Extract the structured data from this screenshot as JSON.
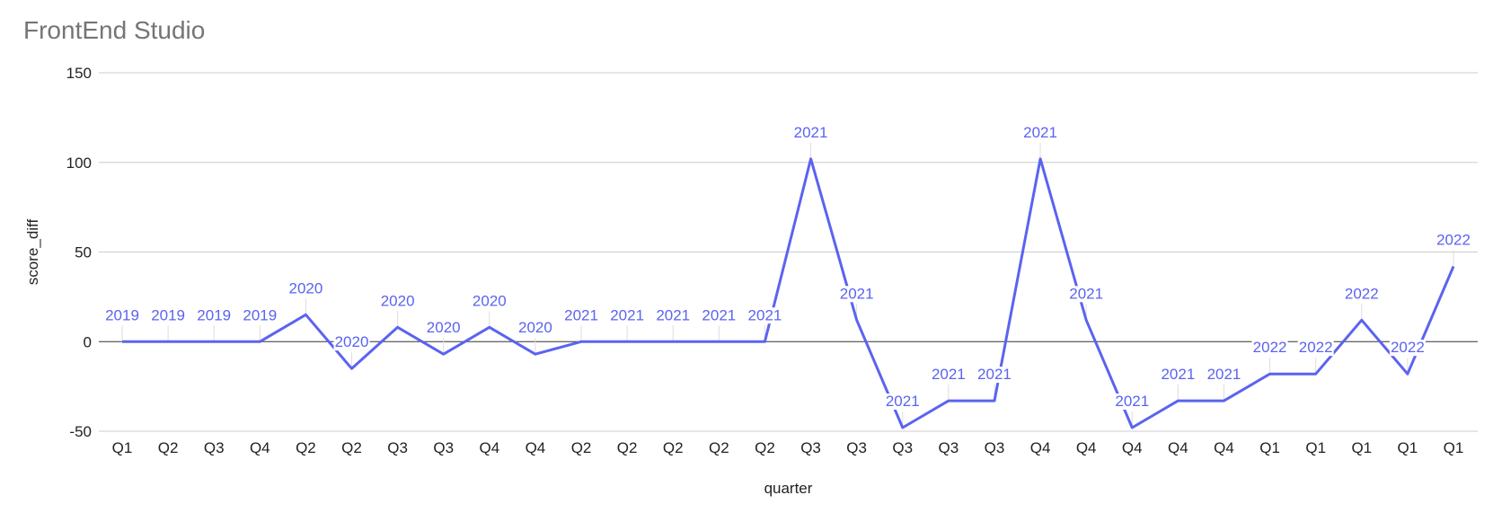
{
  "chart_data": {
    "type": "line",
    "title": "FrontEnd Studio",
    "xlabel": "quarter",
    "ylabel": "score_diff",
    "ylim": [
      -50,
      150
    ],
    "yticks": [
      -50,
      0,
      50,
      100,
      150
    ],
    "grid": true,
    "legend": "none",
    "line_color": "#5b63f0",
    "categories": [
      "Q1",
      "Q2",
      "Q3",
      "Q4",
      "Q2",
      "Q2",
      "Q3",
      "Q3",
      "Q4",
      "Q4",
      "Q2",
      "Q2",
      "Q2",
      "Q2",
      "Q2",
      "Q3",
      "Q3",
      "Q3",
      "Q3",
      "Q3",
      "Q4",
      "Q4",
      "Q4",
      "Q4",
      "Q4",
      "Q1",
      "Q1",
      "Q1",
      "Q1",
      "Q1"
    ],
    "labels": [
      "2019",
      "2019",
      "2019",
      "2019",
      "2020",
      "2020",
      "2020",
      "2020",
      "2020",
      "2020",
      "2021",
      "2021",
      "2021",
      "2021",
      "2021",
      "2021",
      "2021",
      "2021",
      "2021",
      "2021",
      "2021",
      "2021",
      "2021",
      "2021",
      "2021",
      "2022",
      "2022",
      "2022",
      "2022",
      "2022"
    ],
    "values": [
      0,
      0,
      0,
      0,
      15,
      -15,
      8,
      -7,
      8,
      -7,
      0,
      0,
      0,
      0,
      0,
      102,
      12,
      -48,
      -33,
      -33,
      102,
      12,
      -48,
      -33,
      -33,
      -18,
      -18,
      12,
      -18,
      42
    ]
  }
}
